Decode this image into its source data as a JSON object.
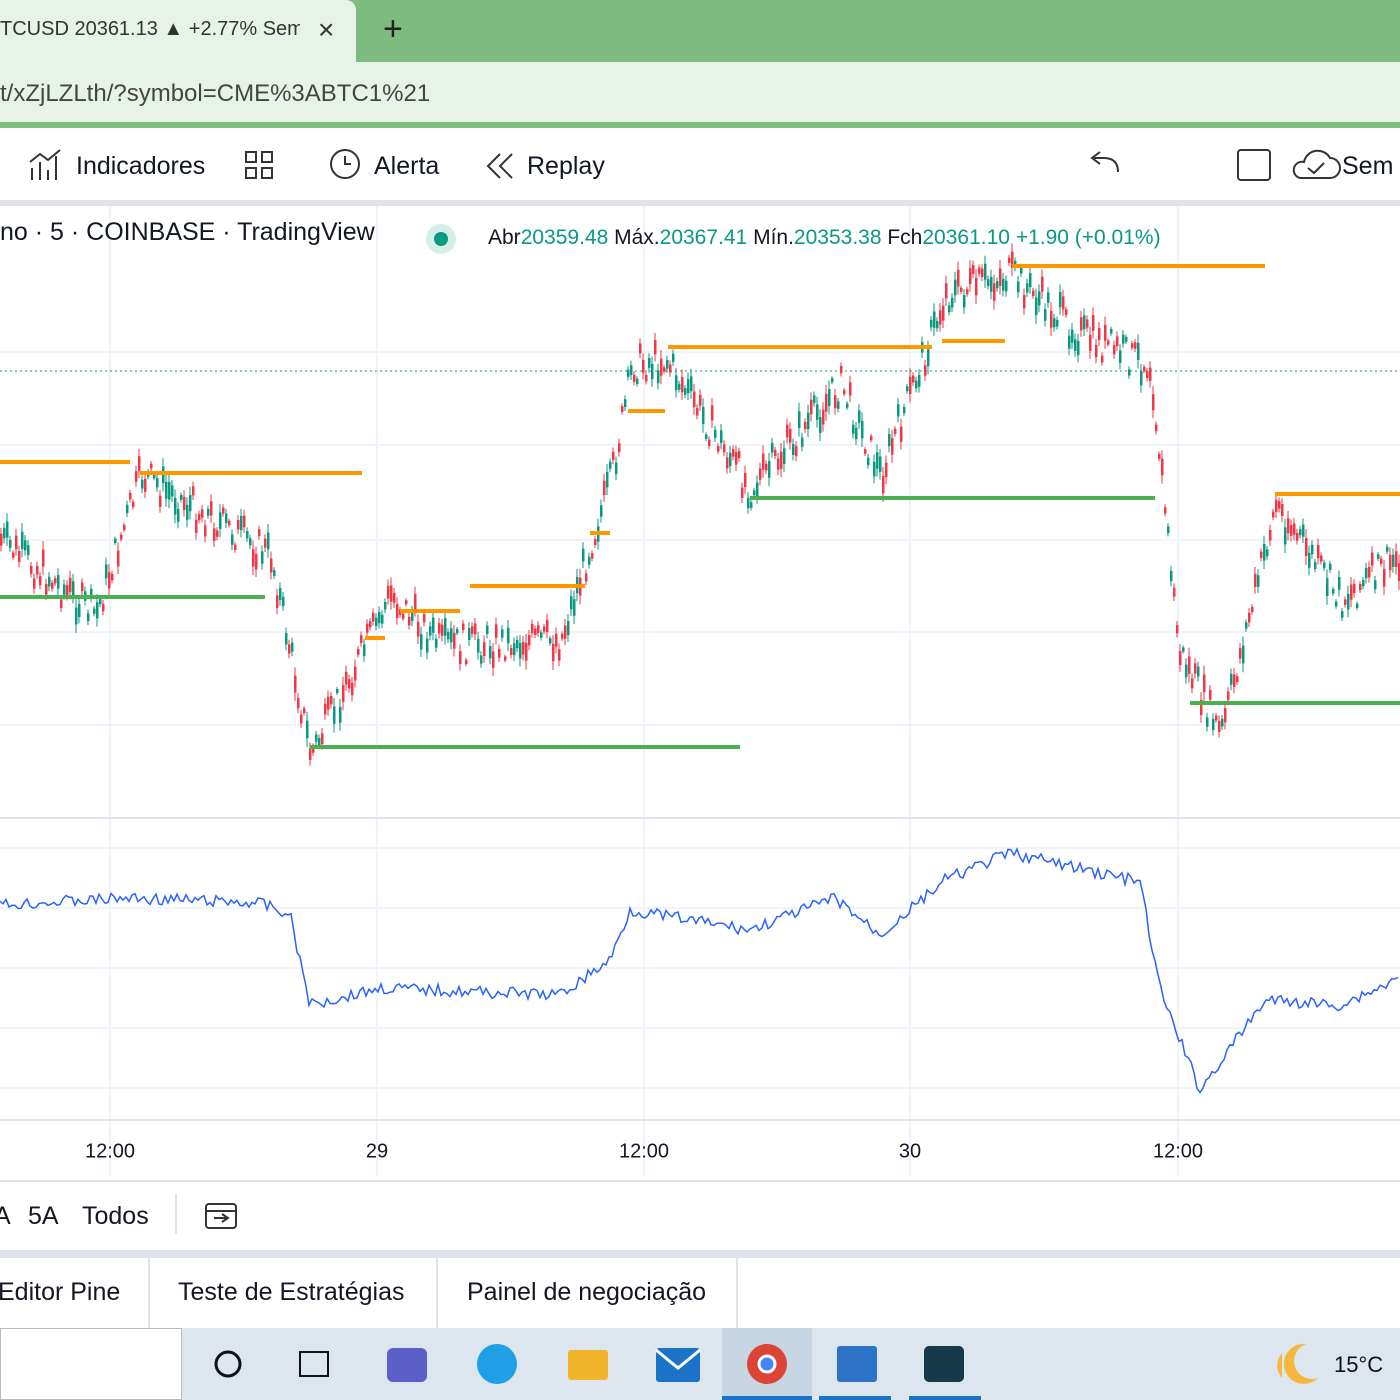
{
  "browser": {
    "tab": {
      "title": "TCUSD 20361.13 ▲ +2.77% Sem",
      "close": "×",
      "new_tab": "+"
    },
    "url": "t/xZjLZLth/?symbol=CME%3ABTC1%21"
  },
  "toolbar": {
    "items": [
      "Indicadores",
      "Alerta",
      "Replay",
      "Sem"
    ]
  },
  "legend": {
    "symbol": "no · 5 · COINBASE · TradingView",
    "open_label": "Abr",
    "open": "20359.48",
    "high_label": "Máx.",
    "high": "20367.41",
    "low_label": "Mín.",
    "low": "20353.38",
    "close_label": "Fch",
    "close": "20361.10",
    "change": "+1.90 (+0.01%)"
  },
  "time_axis": {
    "labels": [
      "12:00",
      "29",
      "12:00",
      "30",
      "12:00"
    ]
  },
  "range_bar": {
    "items": [
      "A",
      "5A",
      "Todos"
    ]
  },
  "bottom_tabs": [
    "Editor Pine",
    "Teste de Estratégias",
    "Painel de negociação"
  ],
  "taskbar": {
    "temperature": "15°C"
  }
}
